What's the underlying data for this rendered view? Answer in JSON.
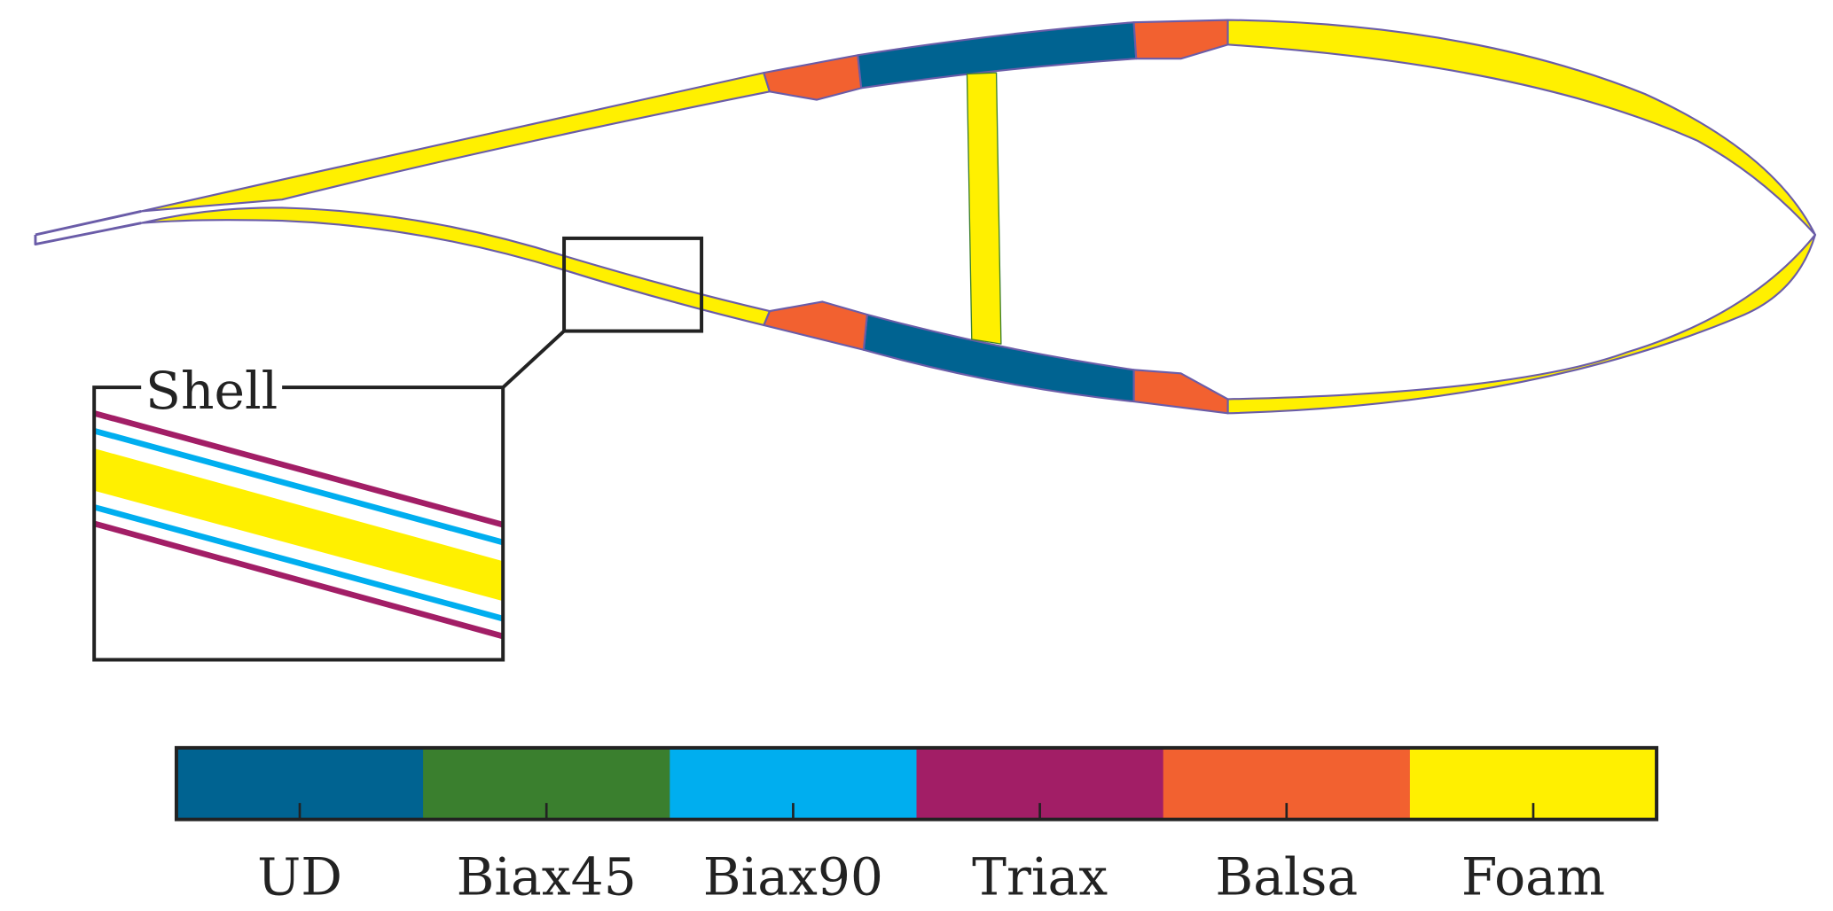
{
  "inset": {
    "label": "Shell"
  },
  "outline_color": "#6a5ca8",
  "materials": [
    {
      "name": "UD",
      "color": "#006391"
    },
    {
      "name": "Biax45",
      "color": "#3a7f2e"
    },
    {
      "name": "Biax90",
      "color": "#00aeef"
    },
    {
      "name": "Triax",
      "color": "#a21e66"
    },
    {
      "name": "Balsa",
      "color": "#f26130"
    },
    {
      "name": "Foam",
      "color": "#fff000"
    }
  ]
}
